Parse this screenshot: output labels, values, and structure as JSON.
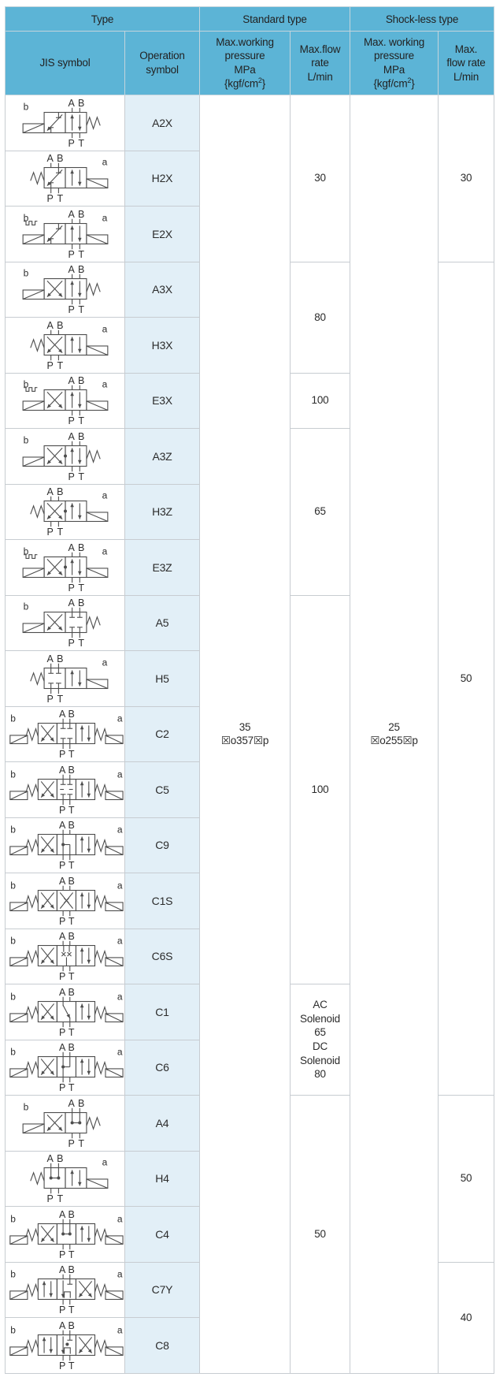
{
  "colors": {
    "header_bg": "#5cb4d6",
    "symbol_col_bg": "#e2eff7",
    "border": "#c7ccd1",
    "schematic_stroke": "#4d4d4d",
    "text": "#2b2b2b"
  },
  "header": {
    "type": "Type",
    "standard_type": "Standard type",
    "shockless_type": "Shock-less type",
    "jis_symbol": "JIS symbol",
    "operation_symbol": "Operation symbol",
    "std_pressure_lines": [
      "Max.working",
      "pressure",
      "MPa"
    ],
    "std_flow_lines": [
      "Max.flow",
      "rate",
      "L/min"
    ],
    "shock_pressure_lines": [
      "Max. working",
      "pressure",
      "MPa"
    ],
    "shock_flow_lines": [
      "Max.",
      "flow rate",
      "L/min"
    ],
    "kgf": {
      "pre": "{kgf/cm",
      "sup": "2",
      "post": "}"
    }
  },
  "pressure": {
    "standard": {
      "line1": "35",
      "line2": "☒o357☒p"
    },
    "shockless": {
      "line1": "25",
      "line2": "☒o255☒p"
    }
  },
  "jis_labels": {
    "A": "A",
    "B": "B",
    "P": "P",
    "T": "T",
    "a": "a",
    "b": "b"
  },
  "rows": [
    {
      "sym": "A2X",
      "jis": {
        "left": "sol",
        "right": "spring",
        "boxes": [
          "diag",
          "parallel"
        ],
        "ab": 2
      }
    },
    {
      "sym": "H2X",
      "jis": {
        "left": "spring",
        "right": "sol",
        "boxes": [
          "diag",
          "parallel"
        ],
        "ab": 1
      }
    },
    {
      "sym": "E2X",
      "jis": {
        "left": "sol",
        "right": "sol",
        "boxes": [
          "diag",
          "parallel"
        ],
        "detent": true,
        "ab": 2
      }
    },
    {
      "sym": "A3X",
      "jis": {
        "left": "sol",
        "right": "spring",
        "boxes": [
          "cross",
          "parallel"
        ],
        "ab": 2
      }
    },
    {
      "sym": "H3X",
      "jis": {
        "left": "spring",
        "right": "sol",
        "boxes": [
          "cross",
          "parallel"
        ],
        "ab": 1
      }
    },
    {
      "sym": "E3X",
      "jis": {
        "left": "sol",
        "right": "sol",
        "boxes": [
          "cross",
          "parallel"
        ],
        "detent": true,
        "ab": 2
      }
    },
    {
      "sym": "A3Z",
      "jis": {
        "left": "sol",
        "right": "spring",
        "boxes": [
          "cross",
          "parallel"
        ],
        "dot": true,
        "ab": 2
      }
    },
    {
      "sym": "H3Z",
      "jis": {
        "left": "spring",
        "right": "sol",
        "boxes": [
          "cross",
          "parallel"
        ],
        "dot": true,
        "ab": 1
      }
    },
    {
      "sym": "E3Z",
      "jis": {
        "left": "sol",
        "right": "sol",
        "boxes": [
          "cross",
          "parallel"
        ],
        "detent": true,
        "dot": true,
        "ab": 2
      }
    },
    {
      "sym": "A5",
      "jis": {
        "left": "sol",
        "right": "spring",
        "boxes": [
          "cross",
          "closed"
        ],
        "ab": 2
      }
    },
    {
      "sym": "H5",
      "jis": {
        "left": "spring",
        "right": "sol",
        "boxes": [
          "closed",
          "parallel"
        ],
        "ab": 1
      }
    },
    {
      "sym": "C2",
      "jis": {
        "left": "solspring",
        "right": "springsol",
        "boxes": [
          "cross",
          "closed",
          "parallel"
        ],
        "ab": 2
      }
    },
    {
      "sym": "C5",
      "jis": {
        "left": "solspring",
        "right": "springsol",
        "boxes": [
          "cross",
          "closedD",
          "parallel"
        ],
        "ab": 2
      }
    },
    {
      "sym": "C9",
      "jis": {
        "left": "solspring",
        "right": "springsol",
        "boxes": [
          "cross",
          "dotline",
          "parallel"
        ],
        "ab": 2
      }
    },
    {
      "sym": "C1S",
      "jis": {
        "left": "solspring",
        "right": "springsol",
        "boxes": [
          "cross",
          "crossx",
          "parallel"
        ],
        "ab": 2
      }
    },
    {
      "sym": "C6S",
      "jis": {
        "left": "solspring",
        "right": "springsol",
        "boxes": [
          "cross",
          "xx",
          "parallel"
        ],
        "ab": 2
      }
    },
    {
      "sym": "C1",
      "jis": {
        "left": "solspring",
        "right": "springsol",
        "boxes": [
          "cross",
          "diagN",
          "parallel"
        ],
        "ab": 2
      }
    },
    {
      "sym": "C6",
      "jis": {
        "left": "solspring",
        "right": "springsol",
        "boxes": [
          "cross",
          "dotline2",
          "parallel"
        ],
        "ab": 2
      }
    },
    {
      "sym": "A4",
      "jis": {
        "left": "sol",
        "right": "spring",
        "boxes": [
          "cross",
          "float"
        ],
        "ab": 2
      }
    },
    {
      "sym": "H4",
      "jis": {
        "left": "spring",
        "right": "sol",
        "boxes": [
          "float",
          "parallel"
        ],
        "ab": 1
      }
    },
    {
      "sym": "C4",
      "jis": {
        "left": "solspring",
        "right": "springsol",
        "boxes": [
          "cross",
          "float",
          "parallel"
        ],
        "ab": 2
      }
    },
    {
      "sym": "C7Y",
      "jis": {
        "left": "solspring",
        "right": "springsol",
        "boxes": [
          "parallel",
          "regen",
          "cross"
        ],
        "ab": 2
      }
    },
    {
      "sym": "C8",
      "jis": {
        "left": "solspring",
        "right": "springsol",
        "boxes": [
          "parallel",
          "regendot",
          "cross"
        ],
        "ab": 2
      }
    }
  ],
  "std_flow_cells": [
    {
      "rows": 3,
      "lines": [
        "30"
      ]
    },
    {
      "rows": 2,
      "lines": [
        "80"
      ]
    },
    {
      "rows": 1,
      "lines": [
        "100"
      ]
    },
    {
      "rows": 3,
      "lines": [
        "65"
      ]
    },
    {
      "rows": 7,
      "lines": [
        "100"
      ]
    },
    {
      "rows": 2,
      "lines": [
        "AC",
        "Solenoid",
        "65",
        "DC",
        "Solenoid",
        "80"
      ]
    },
    {
      "rows": 5,
      "lines": [
        "50"
      ]
    }
  ],
  "shock_flow_cells": [
    {
      "rows": 3,
      "lines": [
        "30"
      ]
    },
    {
      "rows": 15,
      "lines": [
        "50"
      ]
    },
    {
      "rows": 3,
      "lines": [
        "50"
      ]
    },
    {
      "rows": 2,
      "lines": [
        "40"
      ]
    }
  ]
}
